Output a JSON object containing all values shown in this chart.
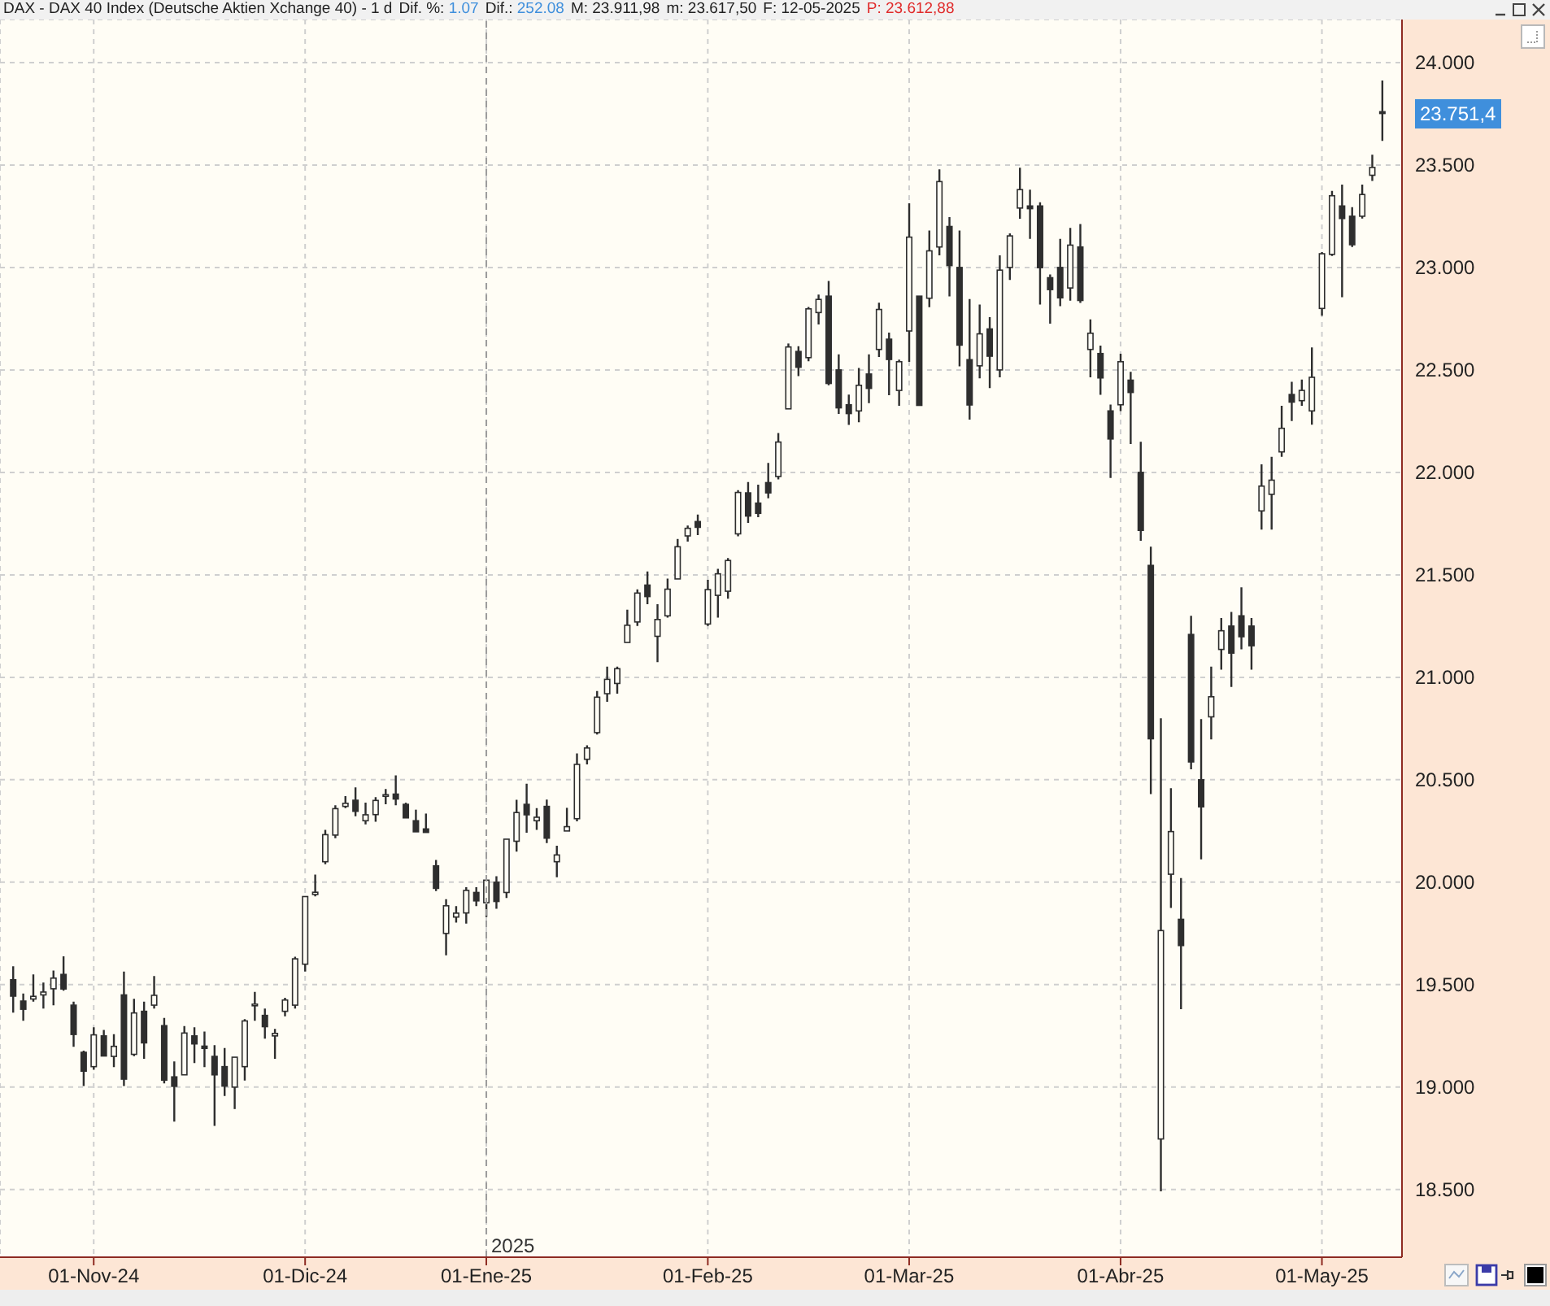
{
  "chart_data": {
    "type": "candlestick",
    "title": "DAX - DAX 40 Index (Deutsche Aktien Xchange 40) - 1 d",
    "annotations": [
      "Dif. %: 1.07",
      "Dif.: 252.08",
      "M: 23.911,98",
      "m: 23.617,50",
      "F: 12-05-2025",
      "P: 23.612,88",
      "23.751,4"
    ],
    "categories": [
      null,
      null,
      null,
      null,
      null,
      null,
      null,
      null,
      "01-Nov-24",
      null,
      null,
      null,
      null,
      null,
      null,
      null,
      null,
      null,
      null,
      null,
      null,
      null,
      null,
      null,
      null,
      null,
      null,
      null,
      null,
      "01-Dic-24",
      null,
      null,
      null,
      null,
      null,
      null,
      null,
      null,
      null,
      null,
      null,
      null,
      null,
      null,
      null,
      null,
      null,
      "01-Ene-25",
      null,
      null,
      null,
      null,
      null,
      null,
      null,
      null,
      null,
      null,
      null,
      null,
      null,
      null,
      null,
      null,
      null,
      null,
      null,
      null,
      null,
      "01-Feb-25",
      null,
      null,
      null,
      null,
      null,
      null,
      null,
      null,
      null,
      null,
      null,
      null,
      null,
      null,
      null,
      null,
      null,
      null,
      null,
      "01-Mar-25",
      null,
      null,
      null,
      null,
      null,
      null,
      null,
      null,
      null,
      null,
      null,
      null,
      null,
      null,
      null,
      null,
      null,
      null,
      null,
      null,
      "01-Abr-25",
      null,
      null,
      null,
      null,
      null,
      null,
      null,
      null,
      null,
      null,
      null,
      null,
      null,
      null,
      null,
      null,
      null,
      null,
      null,
      "01-May-25",
      null,
      null,
      null,
      null,
      null,
      null
    ],
    "ohlc": [
      [
        19524,
        19590,
        19364,
        19444
      ],
      [
        19420,
        19457,
        19324,
        19380
      ],
      [
        19430,
        19550,
        19417,
        19443
      ],
      [
        19450,
        19510,
        19383,
        19464
      ],
      [
        19480,
        19569,
        19399,
        19532
      ],
      [
        19550,
        19638,
        19471,
        19479
      ],
      [
        19400,
        19417,
        19197,
        19257
      ],
      [
        19170,
        19178,
        19005,
        19078
      ],
      [
        19100,
        19292,
        19085,
        19255
      ],
      [
        19250,
        19279,
        19151,
        19152
      ],
      [
        19150,
        19258,
        19098,
        19199
      ],
      [
        19450,
        19564,
        19005,
        19039
      ],
      [
        19160,
        19431,
        19151,
        19362
      ],
      [
        19370,
        19417,
        19138,
        19216
      ],
      [
        19400,
        19542,
        19383,
        19448
      ],
      [
        19300,
        19338,
        19018,
        19034
      ],
      [
        19050,
        19125,
        18832,
        19004
      ],
      [
        19060,
        19298,
        19058,
        19264
      ],
      [
        19250,
        19292,
        19117,
        19211
      ],
      [
        19200,
        19271,
        19098,
        19189
      ],
      [
        19150,
        19205,
        18811,
        19060
      ],
      [
        19100,
        19191,
        18957,
        19005
      ],
      [
        19000,
        19151,
        18893,
        19146
      ],
      [
        19100,
        19332,
        19032,
        19323
      ],
      [
        19400,
        19465,
        19324,
        19405
      ],
      [
        19350,
        19383,
        19237,
        19295
      ],
      [
        19250,
        19284,
        19138,
        19262
      ],
      [
        19370,
        19436,
        19346,
        19425
      ],
      [
        19400,
        19636,
        19383,
        19626
      ],
      [
        19600,
        19935,
        19564,
        19930
      ],
      [
        19940,
        20037,
        19931,
        19951
      ],
      [
        20100,
        20255,
        20088,
        20232
      ],
      [
        20230,
        20375,
        20215,
        20359
      ],
      [
        20370,
        20420,
        20362,
        20385
      ],
      [
        20400,
        20463,
        20322,
        20346
      ],
      [
        20300,
        20388,
        20282,
        20329
      ],
      [
        20330,
        20415,
        20295,
        20399
      ],
      [
        20420,
        20455,
        20380,
        20427
      ],
      [
        20430,
        20521,
        20375,
        20406
      ],
      [
        20380,
        20388,
        20308,
        20314
      ],
      [
        20300,
        20354,
        20242,
        20246
      ],
      [
        20260,
        20335,
        20242,
        20243
      ],
      [
        20080,
        20109,
        19957,
        19970
      ],
      [
        19750,
        19917,
        19643,
        19885
      ],
      [
        19830,
        19883,
        19803,
        19849
      ],
      [
        19850,
        19976,
        19798,
        19960
      ],
      [
        19950,
        19976,
        19883,
        19909
      ],
      [
        19900,
        20016,
        19830,
        20010
      ],
      [
        20000,
        20029,
        19870,
        19906
      ],
      [
        19950,
        20215,
        19923,
        20210
      ],
      [
        20200,
        20402,
        20149,
        20340
      ],
      [
        20380,
        20481,
        20242,
        20329
      ],
      [
        20300,
        20362,
        20255,
        20317
      ],
      [
        20370,
        20403,
        20191,
        20215
      ],
      [
        20100,
        20178,
        20024,
        20133
      ],
      [
        20250,
        20363,
        20244,
        20271
      ],
      [
        20310,
        20628,
        20297,
        20575
      ],
      [
        20600,
        20668,
        20575,
        20655
      ],
      [
        20730,
        20933,
        20721,
        20903
      ],
      [
        20920,
        21052,
        20880,
        20990
      ],
      [
        20970,
        21052,
        20920,
        21042
      ],
      [
        21170,
        21330,
        21164,
        21254
      ],
      [
        21270,
        21429,
        21251,
        21411
      ],
      [
        21450,
        21516,
        21357,
        21394
      ],
      [
        21200,
        21357,
        21074,
        21282
      ],
      [
        21300,
        21482,
        21291,
        21430
      ],
      [
        21480,
        21675,
        21476,
        21637
      ],
      [
        21690,
        21741,
        21662,
        21727
      ],
      [
        21760,
        21794,
        21694,
        21732
      ],
      [
        21260,
        21476,
        21251,
        21428
      ],
      [
        21400,
        21529,
        21291,
        21505
      ],
      [
        21420,
        21582,
        21383,
        21570
      ],
      [
        21700,
        21913,
        21688,
        21902
      ],
      [
        21900,
        21953,
        21754,
        21787
      ],
      [
        21850,
        21940,
        21781,
        21800
      ],
      [
        21950,
        22046,
        21874,
        21900
      ],
      [
        21980,
        22192,
        21966,
        22148
      ],
      [
        22310,
        22629,
        22303,
        22612
      ],
      [
        22590,
        22616,
        22470,
        22513
      ],
      [
        22560,
        22807,
        22542,
        22798
      ],
      [
        22780,
        22868,
        22722,
        22844
      ],
      [
        22860,
        22934,
        22425,
        22434
      ],
      [
        22500,
        22576,
        22285,
        22315
      ],
      [
        22330,
        22380,
        22232,
        22287
      ],
      [
        22300,
        22510,
        22245,
        22425
      ],
      [
        22480,
        22576,
        22338,
        22410
      ],
      [
        22600,
        22828,
        22563,
        22795
      ],
      [
        22650,
        22682,
        22377,
        22551
      ],
      [
        22400,
        22550,
        22325,
        22540
      ],
      [
        22690,
        23313,
        22539,
        23148
      ],
      [
        22860,
        22865,
        22325,
        22327
      ],
      [
        22850,
        23180,
        22806,
        23081
      ],
      [
        23100,
        23479,
        23059,
        23419
      ],
      [
        23200,
        23246,
        22859,
        23009
      ],
      [
        23000,
        23180,
        22517,
        22621
      ],
      [
        22550,
        22846,
        22258,
        22329
      ],
      [
        22520,
        22819,
        22459,
        22676
      ],
      [
        22700,
        22758,
        22411,
        22567
      ],
      [
        22500,
        23059,
        22464,
        22987
      ],
      [
        23000,
        23166,
        22939,
        23154
      ],
      [
        23290,
        23487,
        23238,
        23380
      ],
      [
        23300,
        23380,
        23140,
        23287
      ],
      [
        23300,
        23318,
        22819,
        22999
      ],
      [
        22950,
        22966,
        22726,
        22892
      ],
      [
        23000,
        23140,
        22811,
        22852
      ],
      [
        22900,
        23193,
        22838,
        23109
      ],
      [
        23100,
        23212,
        22827,
        22839
      ],
      [
        22600,
        22747,
        22464,
        22679
      ],
      [
        22580,
        22619,
        22379,
        22461
      ],
      [
        22300,
        22331,
        21973,
        22163
      ],
      [
        22330,
        22579,
        22299,
        22540
      ],
      [
        22450,
        22491,
        22138,
        22390
      ],
      [
        22000,
        22149,
        21666,
        21717
      ],
      [
        21546,
        21637,
        20430,
        20700
      ],
      [
        18747,
        20800,
        18491,
        19764
      ],
      [
        20039,
        20459,
        19874,
        20247
      ],
      [
        19819,
        20020,
        19380,
        19691
      ],
      [
        21209,
        21300,
        20551,
        20587
      ],
      [
        20500,
        20796,
        20112,
        20368
      ],
      [
        20807,
        21052,
        20697,
        20905
      ],
      [
        21136,
        21289,
        21037,
        21227
      ],
      [
        21250,
        21319,
        20953,
        21118
      ],
      [
        21300,
        21439,
        21136,
        21198
      ],
      [
        21250,
        21289,
        21037,
        21154
      ],
      [
        21812,
        22039,
        21721,
        21933
      ],
      [
        21893,
        22076,
        21721,
        21962
      ],
      [
        22100,
        22325,
        22076,
        22215
      ],
      [
        22380,
        22442,
        22251,
        22343
      ],
      [
        22350,
        22453,
        22325,
        22400
      ],
      [
        22300,
        22610,
        22233,
        22464
      ],
      [
        22800,
        23075,
        22764,
        23067
      ],
      [
        23064,
        23374,
        23056,
        23350
      ],
      [
        23300,
        23404,
        22855,
        23239
      ],
      [
        23250,
        23294,
        23100,
        23111
      ],
      [
        23250,
        23404,
        23239,
        23356
      ],
      [
        23450,
        23550,
        23422,
        23488
      ],
      [
        23760,
        23911.98,
        23617.5,
        23751.4
      ]
    ],
    "color": "#2e2e2e",
    "ylim": [
      18170,
      24210
    ],
    "yticks": [
      {
        "value": 18500,
        "label": "18.500"
      },
      {
        "value": 19000,
        "label": "19.000"
      },
      {
        "value": 19500,
        "label": "19.500"
      },
      {
        "value": 20000,
        "label": "20.000"
      },
      {
        "value": 20500,
        "label": "20.500"
      },
      {
        "value": 21000,
        "label": "21.000"
      },
      {
        "value": 21500,
        "label": "21.500"
      },
      {
        "value": 22000,
        "label": "22.000"
      },
      {
        "value": 22500,
        "label": "22.500"
      },
      {
        "value": 23000,
        "label": "23.000"
      },
      {
        "value": 23500,
        "label": "23.500"
      },
      {
        "value": 24000,
        "label": "24.000"
      }
    ],
    "grid": true,
    "ref_lines": [
      {
        "axis": "x",
        "value": "01-Ene-25",
        "label": "2025",
        "color": "#9c9c9c",
        "line_style": "dashed"
      }
    ]
  }
}
